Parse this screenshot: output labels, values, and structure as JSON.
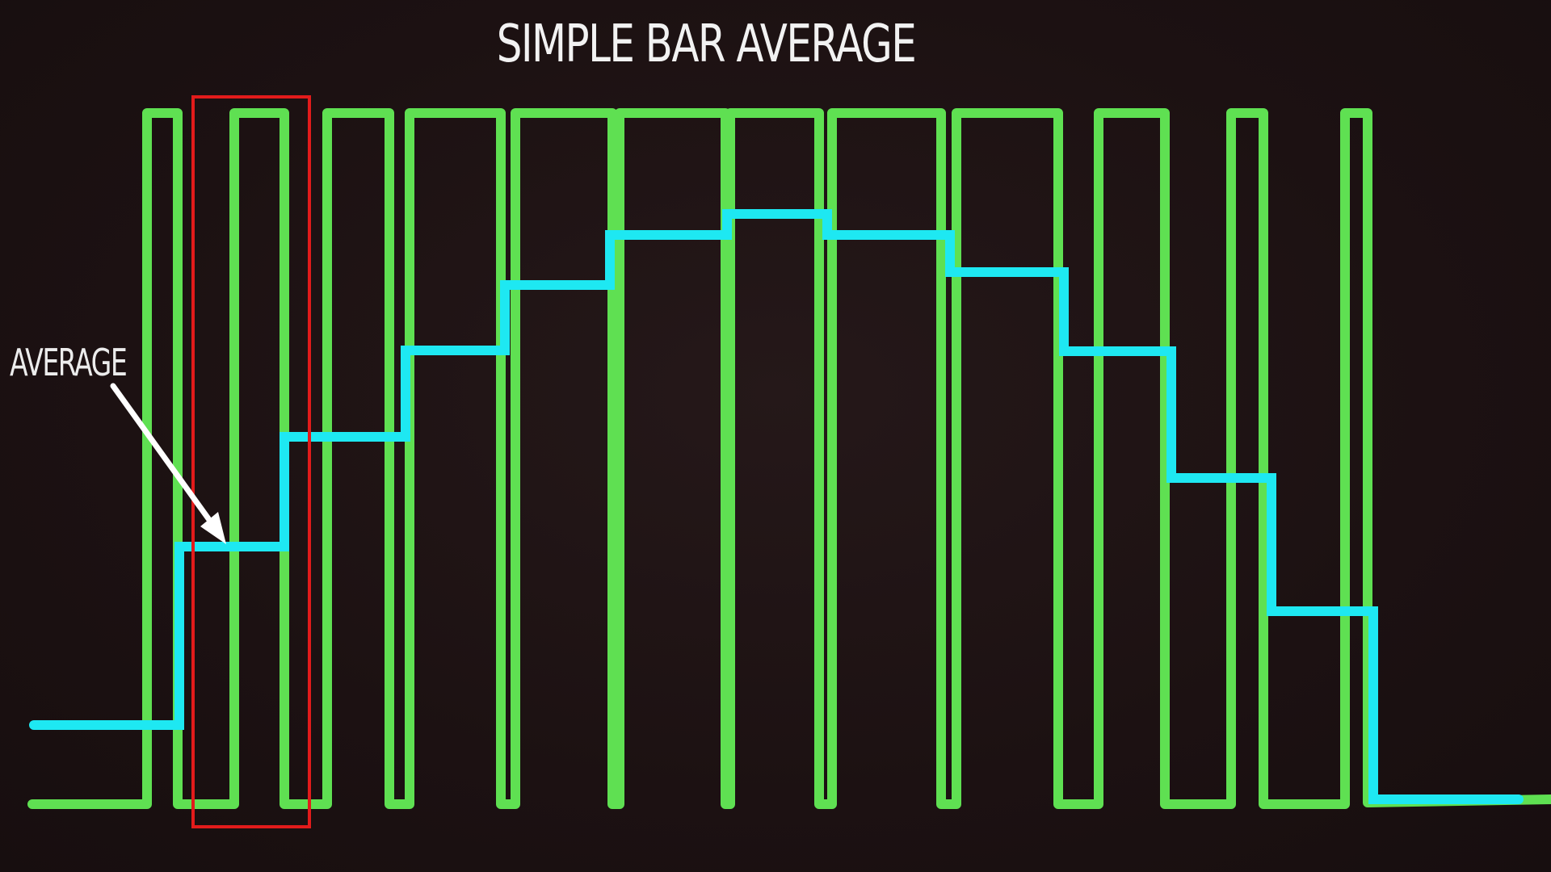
{
  "slide": {
    "title": "SIMPLE BAR AVERAGE",
    "annotation_label": "AVERAGE"
  },
  "colors": {
    "background": "#1d1213",
    "pulse_signal": "#5fe052",
    "average_line": "#1ee8f2",
    "highlight_box": "#e21b1b",
    "text": "#f2f2f2",
    "arrow": "#ffffff"
  },
  "diagram": {
    "pulse_count": 12,
    "average_steps": 12,
    "highlighted_pulse_index": 2
  }
}
